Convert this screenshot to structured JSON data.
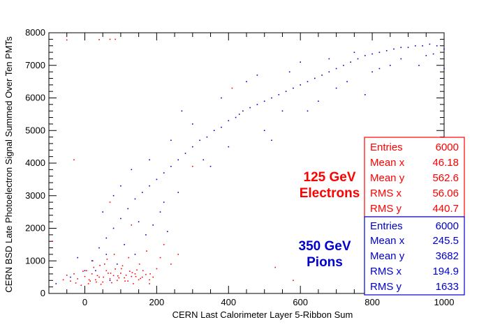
{
  "chart_data": {
    "type": "scatter",
    "title": "",
    "xlabel": "CERN Last Calorimeter Layer 5-Ribbon Sum",
    "ylabel": "CERN BSD Late Photoelectron Signal Summed Over Ten PMTs",
    "xlim": [
      -100,
      1000
    ],
    "ylim": [
      0,
      8000
    ],
    "x_ticks": [
      "0",
      "200",
      "400",
      "600",
      "800",
      "1000"
    ],
    "y_ticks": [
      "0",
      "1000",
      "2000",
      "3000",
      "4000",
      "5000",
      "6000",
      "7000",
      "8000"
    ],
    "series": [
      {
        "name_lines": [
          "125 GeV",
          "Electrons"
        ],
        "color": "#ff0000",
        "stats": [
          {
            "label": "Entries",
            "value": "6000"
          },
          {
            "label": "Mean x",
            "value": "46.18"
          },
          {
            "label": "Mean y",
            "value": "562.6"
          },
          {
            "label": "RMS x",
            "value": "56.06"
          },
          {
            "label": "RMS y",
            "value": "440.7"
          }
        ],
        "points": [
          [
            -40,
            380
          ],
          [
            -20,
            450
          ],
          [
            0,
            520
          ],
          [
            10,
            300
          ],
          [
            20,
            600
          ],
          [
            30,
            420
          ],
          [
            40,
            500
          ],
          [
            50,
            350
          ],
          [
            60,
            700
          ],
          [
            70,
            450
          ],
          [
            80,
            550
          ],
          [
            90,
            400
          ],
          [
            100,
            620
          ],
          [
            110,
            480
          ],
          [
            120,
            380
          ],
          [
            130,
            520
          ],
          [
            140,
            600
          ],
          [
            150,
            420
          ],
          [
            160,
            500
          ],
          [
            -30,
            600
          ],
          [
            -10,
            250
          ],
          [
            5,
            700
          ],
          [
            15,
            380
          ],
          [
            25,
            800
          ],
          [
            35,
            550
          ],
          [
            45,
            280
          ],
          [
            55,
            900
          ],
          [
            65,
            620
          ],
          [
            75,
            330
          ],
          [
            85,
            750
          ],
          [
            95,
            480
          ],
          [
            105,
            850
          ],
          [
            115,
            560
          ],
          [
            125,
            680
          ],
          [
            135,
            300
          ],
          [
            145,
            720
          ],
          [
            155,
            460
          ],
          [
            170,
            580
          ],
          [
            180,
            420
          ],
          [
            190,
            500
          ],
          [
            -60,
            420
          ],
          [
            -50,
            560
          ],
          [
            -25,
            320
          ],
          [
            -5,
            680
          ],
          [
            12,
            420
          ],
          [
            22,
            1000
          ],
          [
            32,
            350
          ],
          [
            42,
            860
          ],
          [
            52,
            500
          ],
          [
            62,
            1050
          ],
          [
            72,
            620
          ],
          [
            82,
            1200
          ],
          [
            92,
            540
          ],
          [
            102,
            760
          ],
          [
            112,
            380
          ],
          [
            122,
            1100
          ],
          [
            132,
            640
          ],
          [
            142,
            520
          ],
          [
            152,
            900
          ],
          [
            162,
            700
          ],
          [
            172,
            1300
          ],
          [
            182,
            600
          ],
          [
            200,
            760
          ],
          [
            210,
            1100
          ],
          [
            220,
            1500
          ],
          [
            240,
            900
          ],
          [
            70,
            2800
          ],
          [
            130,
            2100
          ],
          [
            -90,
            1600
          ],
          [
            300,
            3900
          ],
          [
            410,
            6300
          ],
          [
            530,
            800
          ],
          [
            70,
            7800
          ],
          [
            85,
            7800
          ],
          [
            -50,
            7780
          ],
          [
            40,
            7790
          ],
          [
            -30,
            4100
          ],
          [
            180,
            300
          ],
          [
            260,
            1200
          ],
          [
            580,
            400
          ]
        ]
      },
      {
        "name_lines": [
          "350 GeV",
          "Pions"
        ],
        "color": "#0000cc",
        "stats": [
          {
            "label": "Entries",
            "value": "6000"
          },
          {
            "label": "Mean x",
            "value": "245.5"
          },
          {
            "label": "Mean y",
            "value": "3682"
          },
          {
            "label": "RMS x",
            "value": "194.9"
          },
          {
            "label": "RMS y",
            "value": "1633"
          }
        ],
        "points": [
          [
            -40,
            500
          ],
          [
            0,
            700
          ],
          [
            20,
            1000
          ],
          [
            40,
            1400
          ],
          [
            60,
            1700
          ],
          [
            80,
            2000
          ],
          [
            100,
            2300
          ],
          [
            120,
            2600
          ],
          [
            140,
            2900
          ],
          [
            160,
            3100
          ],
          [
            180,
            3300
          ],
          [
            200,
            3500
          ],
          [
            220,
            3700
          ],
          [
            240,
            3900
          ],
          [
            260,
            4100
          ],
          [
            280,
            4300
          ],
          [
            300,
            4500
          ],
          [
            320,
            4700
          ],
          [
            340,
            4800
          ],
          [
            360,
            5000
          ],
          [
            380,
            5100
          ],
          [
            400,
            5300
          ],
          [
            420,
            5400
          ],
          [
            440,
            5600
          ],
          [
            460,
            5700
          ],
          [
            480,
            5800
          ],
          [
            500,
            5900
          ],
          [
            520,
            6000
          ],
          [
            540,
            6100
          ],
          [
            560,
            6200
          ],
          [
            580,
            6300
          ],
          [
            600,
            6400
          ],
          [
            620,
            6500
          ],
          [
            640,
            6600
          ],
          [
            660,
            6700
          ],
          [
            680,
            6800
          ],
          [
            700,
            6900
          ],
          [
            720,
            7000
          ],
          [
            740,
            7100
          ],
          [
            760,
            7200
          ],
          [
            780,
            7300
          ],
          [
            800,
            7350
          ],
          [
            820,
            7400
          ],
          [
            840,
            7450
          ],
          [
            860,
            7500
          ],
          [
            880,
            7550
          ],
          [
            900,
            7550
          ],
          [
            920,
            7600
          ],
          [
            940,
            7600
          ],
          [
            960,
            7650
          ],
          [
            980,
            7600
          ],
          [
            1000,
            7500
          ],
          [
            100,
            3300
          ],
          [
            150,
            2200
          ],
          [
            180,
            4100
          ],
          [
            220,
            2800
          ],
          [
            260,
            3100
          ],
          [
            300,
            5200
          ],
          [
            350,
            3900
          ],
          [
            400,
            4500
          ],
          [
            450,
            6500
          ],
          [
            500,
            5000
          ],
          [
            550,
            5600
          ],
          [
            600,
            7100
          ],
          [
            650,
            5900
          ],
          [
            700,
            6300
          ],
          [
            750,
            7400
          ],
          [
            800,
            6800
          ],
          [
            850,
            7000
          ],
          [
            950,
            7300
          ],
          [
            50,
            2500
          ],
          [
            80,
            3000
          ],
          [
            130,
            3800
          ],
          [
            240,
            4700
          ],
          [
            270,
            5600
          ],
          [
            330,
            4100
          ],
          [
            380,
            6000
          ],
          [
            430,
            5500
          ],
          [
            480,
            6700
          ],
          [
            520,
            4700
          ],
          [
            570,
            6800
          ],
          [
            620,
            5600
          ],
          [
            680,
            7200
          ],
          [
            730,
            6500
          ],
          [
            780,
            6100
          ],
          [
            820,
            6900
          ],
          [
            880,
            7200
          ],
          [
            930,
            7000
          ],
          [
            970,
            7350
          ],
          [
            1000,
            6900
          ],
          [
            30,
            700
          ],
          [
            60,
            1200
          ],
          [
            90,
            900
          ],
          [
            110,
            1500
          ],
          [
            140,
            1200
          ],
          [
            170,
            1800
          ],
          [
            190,
            2100
          ],
          [
            210,
            2500
          ],
          [
            230,
            1900
          ],
          [
            -80,
            300
          ],
          [
            -20,
            1100
          ],
          [
            70,
            400
          ]
        ]
      }
    ]
  }
}
